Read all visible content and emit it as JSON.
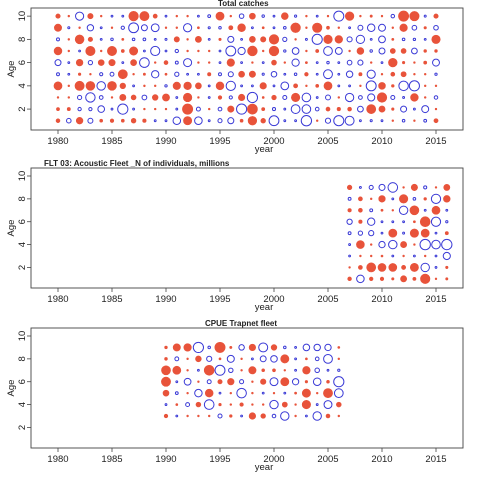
{
  "colors": {
    "positive": "#3a3ad6",
    "negative": "#e8533a",
    "frame": "#444444"
  },
  "chart_data": [
    {
      "type": "scatter",
      "subtype": "bubble-residuals",
      "title": "Total catches",
      "xlabel": "year",
      "ylabel": "Age",
      "xlim": [
        1977.5,
        2017.5
      ],
      "ylim": [
        0.2,
        10.7
      ],
      "xticks": [
        1980,
        1985,
        1990,
        1995,
        2000,
        2005,
        2010,
        2015
      ],
      "yticks": [
        2,
        4,
        6,
        8,
        10
      ],
      "years": [
        1980,
        2015
      ],
      "ages": [
        1,
        10
      ],
      "seed": 11
    },
    {
      "type": "scatter",
      "subtype": "bubble-residuals",
      "title": "FLT 03: Acoustic Fleet _N of individuals, millions",
      "xlabel": "year",
      "ylabel": "Age",
      "xlim": [
        1977.5,
        2017.5
      ],
      "ylim": [
        0.2,
        10.7
      ],
      "xticks": [
        1980,
        1985,
        1990,
        1995,
        2000,
        2005,
        2010,
        2015
      ],
      "yticks": [
        2,
        4,
        6,
        8,
        10
      ],
      "years": [
        2007,
        2016
      ],
      "ages": [
        1,
        9
      ],
      "seed": 23
    },
    {
      "type": "scatter",
      "subtype": "bubble-residuals",
      "title": "CPUE Trapnet fleet",
      "xlabel": "year",
      "ylabel": "Age",
      "xlim": [
        1977.5,
        2017.5
      ],
      "ylim": [
        0.2,
        10.7
      ],
      "xticks": [
        1980,
        1985,
        1990,
        1995,
        2000,
        2005,
        2010,
        2015
      ],
      "yticks": [
        2,
        4,
        6,
        8,
        10
      ],
      "years": [
        1990,
        2006
      ],
      "ages": [
        3,
        9
      ],
      "seed": 37
    }
  ]
}
